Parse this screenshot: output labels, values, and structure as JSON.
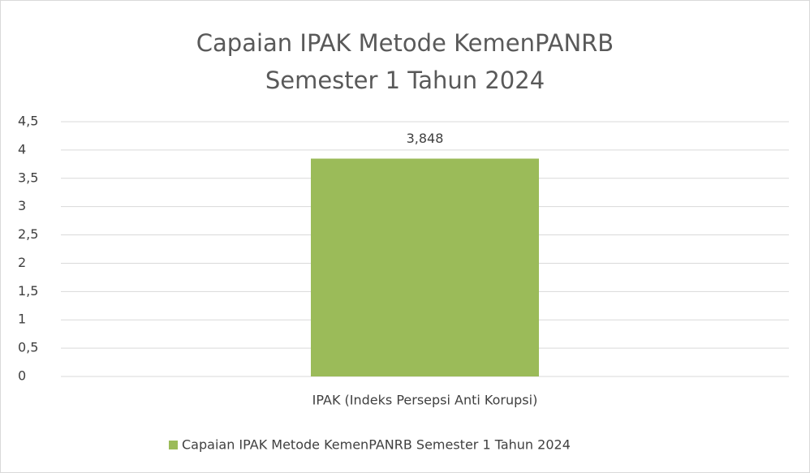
{
  "chart_data": {
    "type": "bar",
    "title": "Capaian IPAK Metode KemenPANRB Semester 1 Tahun 2024",
    "categories": [
      "IPAK (Indeks Persepsi Anti Korupsi)"
    ],
    "series": [
      {
        "name": "Capaian IPAK Metode KemenPANRB Semester 1 Tahun 2024",
        "color": "#9bbb59",
        "values": [
          3.848
        ],
        "value_labels": [
          "3,848"
        ]
      }
    ],
    "ylim": [
      0,
      4.5
    ],
    "yticks": [
      0,
      {
        "value": 0.5,
        "label": "0,5"
      },
      1,
      {
        "value": 1.5,
        "label": "1,5"
      },
      2,
      {
        "value": 2.5,
        "label": "2,5"
      },
      3,
      {
        "value": 3.5,
        "label": "3,5"
      },
      4,
      {
        "value": 4.5,
        "label": "4,5"
      }
    ],
    "grid": true,
    "legend": "bottom"
  }
}
